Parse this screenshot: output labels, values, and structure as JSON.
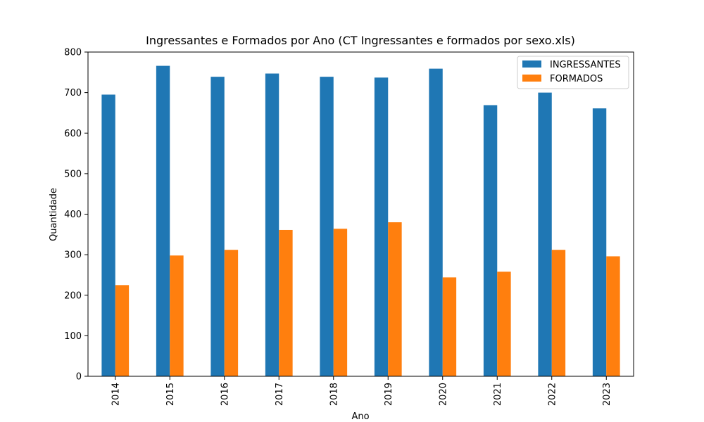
{
  "chart_data": {
    "type": "bar",
    "title": "Ingressantes e Formados por Ano (CT Ingressantes e formados por sexo.xls)",
    "xlabel": "Ano",
    "ylabel": "Quantidade",
    "categories": [
      "2014",
      "2015",
      "2016",
      "2017",
      "2018",
      "2019",
      "2020",
      "2021",
      "2022",
      "2023"
    ],
    "series": [
      {
        "name": "INGRESSANTES",
        "color": "#1f77b4",
        "values": [
          695,
          766,
          739,
          747,
          739,
          737,
          759,
          669,
          700,
          661
        ]
      },
      {
        "name": "FORMADOS",
        "color": "#ff7f0e",
        "values": [
          225,
          298,
          312,
          361,
          364,
          380,
          244,
          258,
          312,
          296
        ]
      }
    ],
    "ylim": [
      0,
      800
    ],
    "yticks": [
      0,
      100,
      200,
      300,
      400,
      500,
      600,
      700,
      800
    ],
    "grid": false,
    "legend": "top-right"
  }
}
